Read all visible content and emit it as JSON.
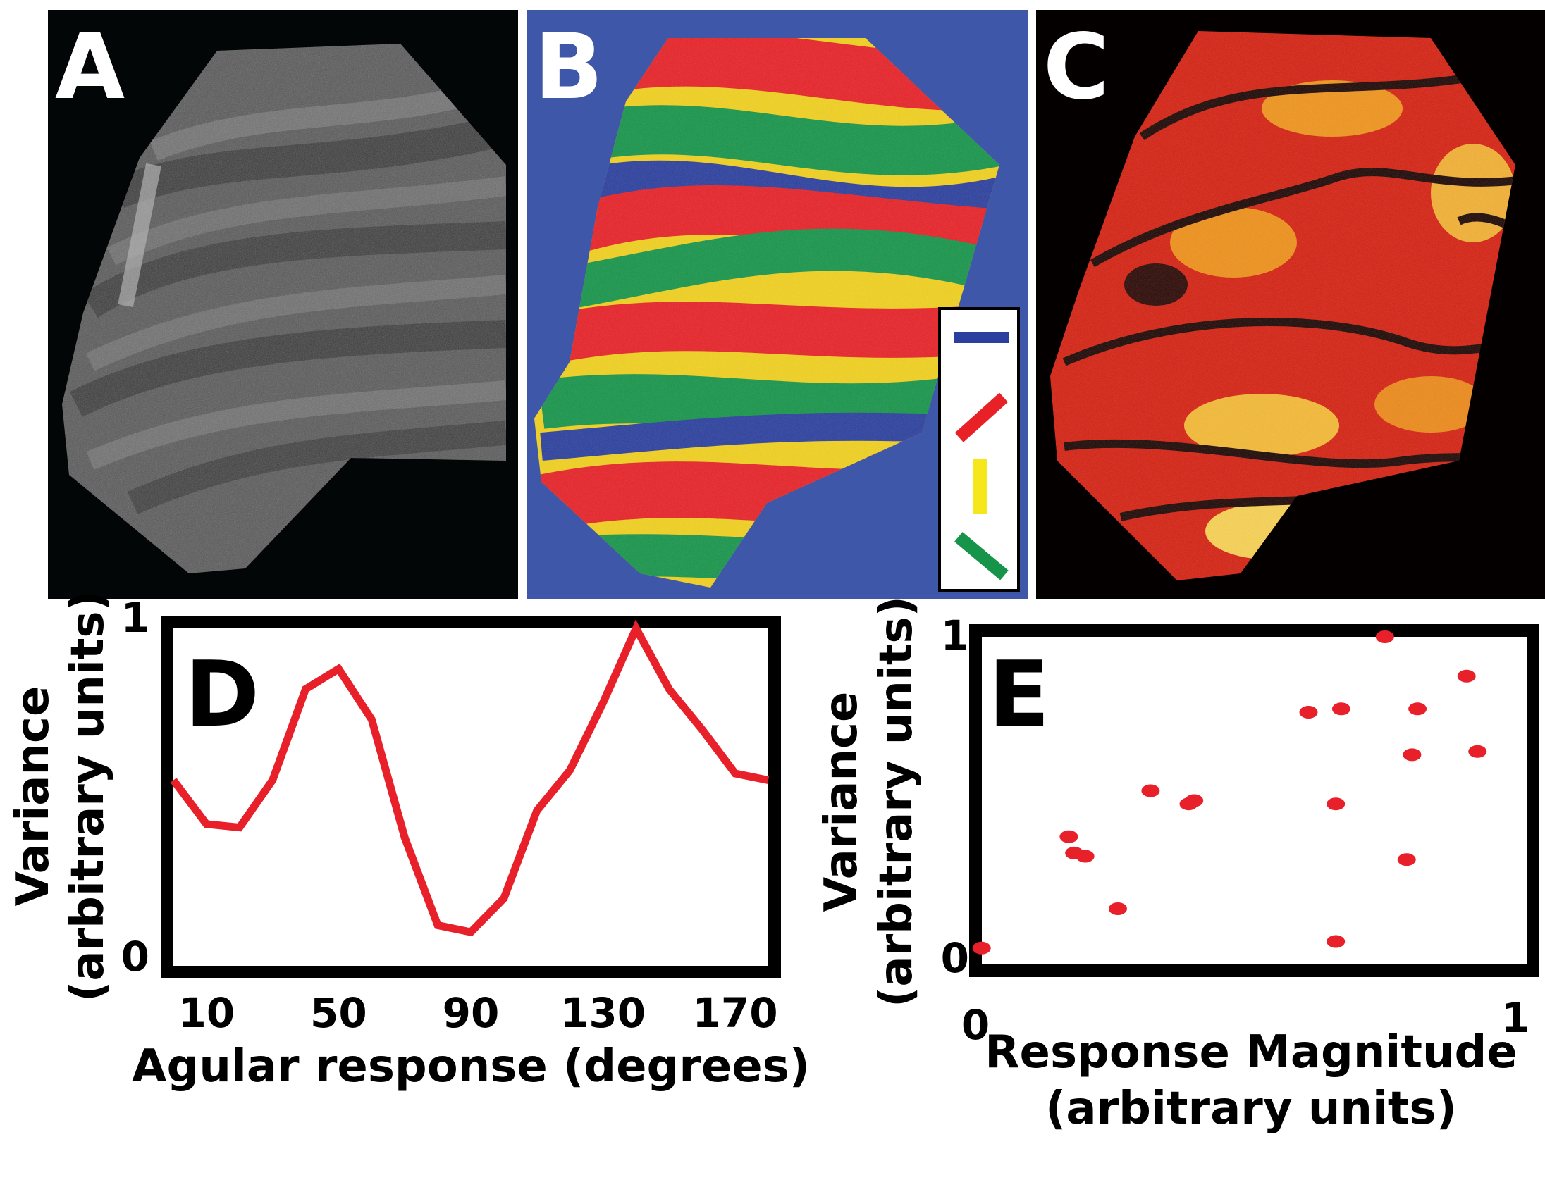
{
  "panels": {
    "a": {
      "letter": "A"
    },
    "b": {
      "letter": "B"
    },
    "c": {
      "letter": "C"
    }
  },
  "orientation_legend": {
    "icons": [
      "horizontal-bar-icon",
      "diagonal-bar-icon",
      "vertical-bar-icon",
      "antidiagonal-bar-icon"
    ],
    "colors": [
      "#2b3f9e",
      "#e82127",
      "#f5e71c",
      "#16954a"
    ]
  },
  "colors": {
    "line": "#e8202a",
    "scatter": "#e8202a",
    "map_background_b": "#3f57a8",
    "map_background_a": "#030607",
    "map_background_c": "#050000"
  },
  "chart_data": [
    {
      "type": "line",
      "panel_letter": "D",
      "xlabel": "Agular response (degrees)",
      "ylabel": "Variance\n(arbitrary units)",
      "ylabel_lines": [
        "Variance",
        "(arbitrary units)"
      ],
      "x_tick_labels": [
        "10",
        "50",
        "90",
        "130",
        "170"
      ],
      "x_ticks": [
        10,
        50,
        90,
        130,
        170
      ],
      "y_tick_labels": [
        "0",
        "1"
      ],
      "xlim": [
        0,
        180
      ],
      "ylim": [
        0,
        1
      ],
      "x": [
        0,
        10,
        20,
        30,
        40,
        50,
        60,
        70,
        80,
        90,
        100,
        110,
        120,
        130,
        140,
        150,
        160,
        170,
        180
      ],
      "values": [
        0.55,
        0.42,
        0.41,
        0.55,
        0.82,
        0.88,
        0.73,
        0.38,
        0.12,
        0.1,
        0.2,
        0.46,
        0.58,
        0.78,
        1.0,
        0.82,
        0.7,
        0.57,
        0.55
      ]
    },
    {
      "type": "scatter",
      "panel_letter": "E",
      "xlabel_lines": [
        "Response Magnitude",
        "(arbitrary units)"
      ],
      "ylabel_lines": [
        "Variance",
        "(arbitrary units)"
      ],
      "x_tick_labels": [
        "0",
        "1"
      ],
      "y_tick_labels": [
        "0",
        "1"
      ],
      "xlim": [
        0,
        1
      ],
      "ylim": [
        0,
        1
      ],
      "points": [
        {
          "x": 0.01,
          "y": 0.05
        },
        {
          "x": 0.17,
          "y": 0.39
        },
        {
          "x": 0.18,
          "y": 0.34
        },
        {
          "x": 0.2,
          "y": 0.33
        },
        {
          "x": 0.26,
          "y": 0.17
        },
        {
          "x": 0.32,
          "y": 0.53
        },
        {
          "x": 0.39,
          "y": 0.49
        },
        {
          "x": 0.4,
          "y": 0.5
        },
        {
          "x": 0.61,
          "y": 0.77
        },
        {
          "x": 0.66,
          "y": 0.49
        },
        {
          "x": 0.66,
          "y": 0.07
        },
        {
          "x": 0.67,
          "y": 0.78
        },
        {
          "x": 0.75,
          "y": 1.0
        },
        {
          "x": 0.79,
          "y": 0.32
        },
        {
          "x": 0.8,
          "y": 0.64
        },
        {
          "x": 0.81,
          "y": 0.78
        },
        {
          "x": 0.9,
          "y": 0.88
        },
        {
          "x": 0.92,
          "y": 0.65
        }
      ]
    }
  ]
}
